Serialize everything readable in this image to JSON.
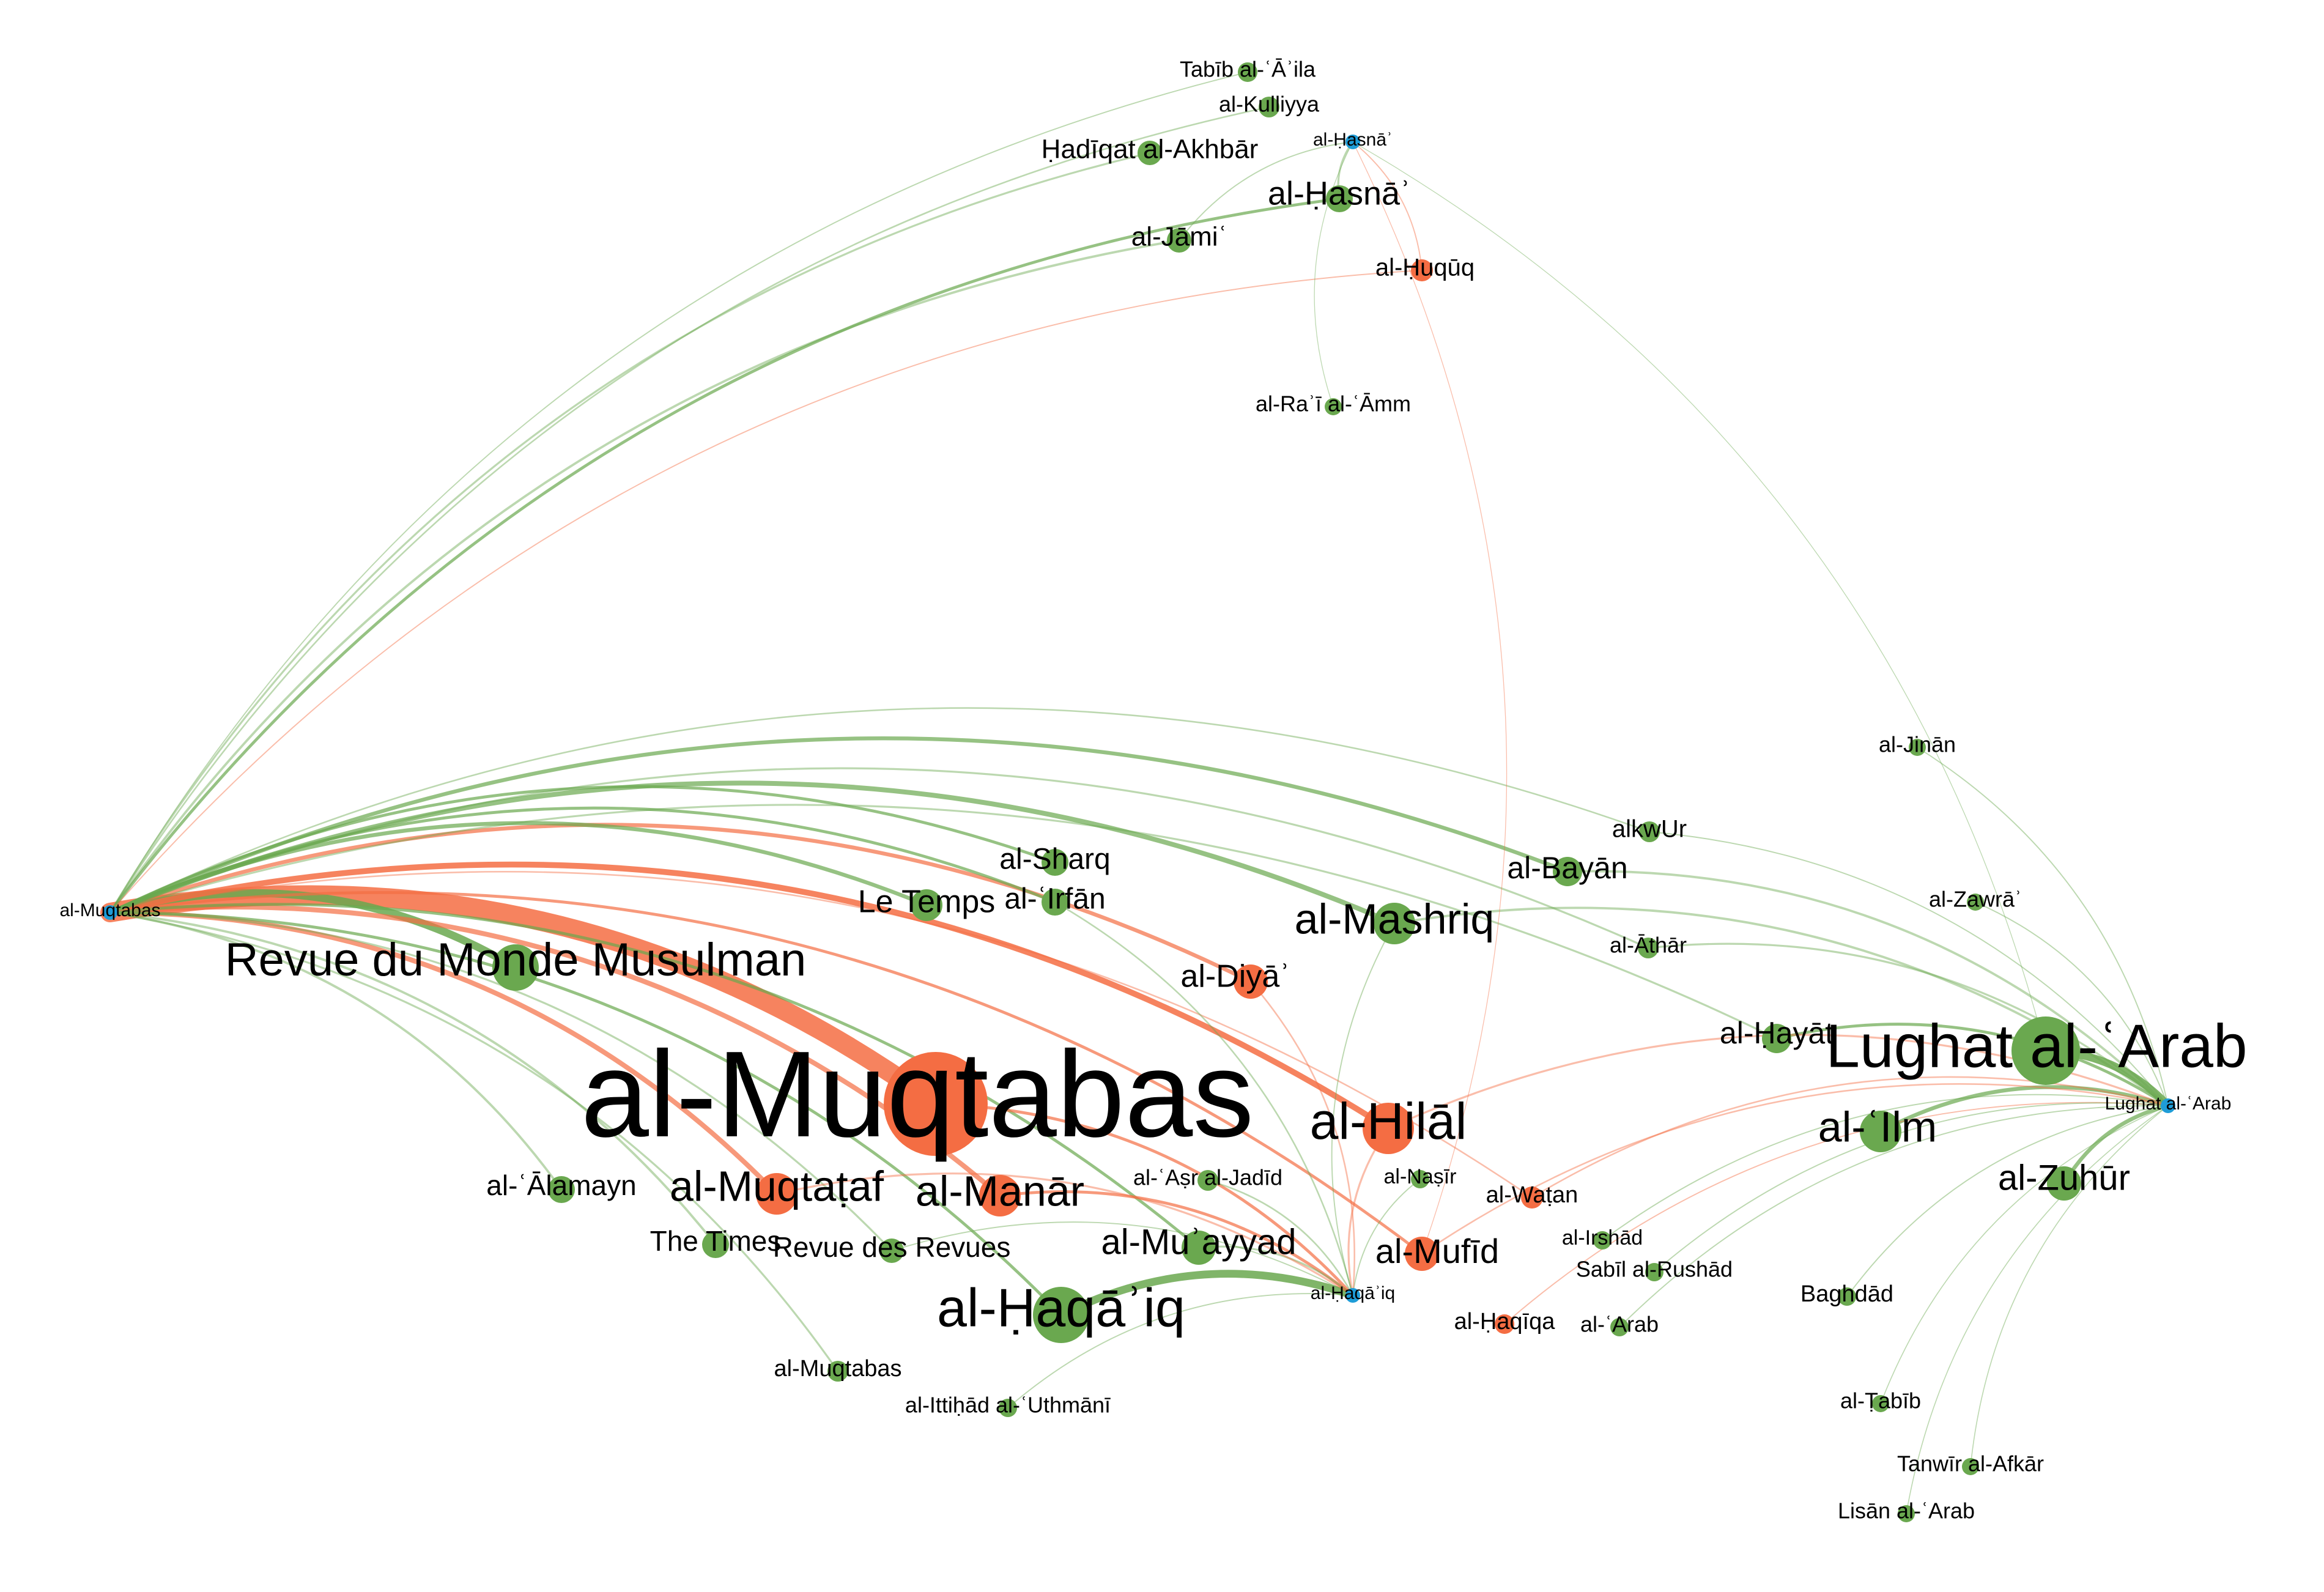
{
  "colors": {
    "green": "#6aa84f",
    "orange": "#f46d43",
    "blue": "#1e9cd7",
    "edge_green": "#6aa84f",
    "edge_orange": "#f46d43",
    "background": "#ffffff"
  },
  "nodes": [
    {
      "id": "muqtabas_big",
      "label": "al-Muqtabas",
      "group": "orange",
      "weight": 10
    },
    {
      "id": "hilal",
      "label": "al-Hilāl",
      "group": "orange",
      "weight": 4.2
    },
    {
      "id": "manar",
      "label": "al-Manār",
      "group": "orange",
      "weight": 3.2
    },
    {
      "id": "muqtataf",
      "label": "al-Muqtaṭaf",
      "group": "orange",
      "weight": 3.2
    },
    {
      "id": "diya",
      "label": "al-Diyāʾ",
      "group": "orange",
      "weight": 2.8
    },
    {
      "id": "mufid",
      "label": "al-Mufīd",
      "group": "orange",
      "weight": 2.8
    },
    {
      "id": "watan",
      "label": "al-Waṭan",
      "group": "orange",
      "weight": 2
    },
    {
      "id": "haqiqa",
      "label": "al-Ḥaqīqa",
      "group": "orange",
      "weight": 2
    },
    {
      "id": "huquq",
      "label": "al-Ḥuqūq",
      "group": "orange",
      "weight": 2
    },
    {
      "id": "lughat_big",
      "label": "Lughat al-ʿArab",
      "group": "green",
      "weight": 4.8
    },
    {
      "id": "haqaiq",
      "label": "al-Ḥaqāʾiq",
      "group": "green",
      "weight": 4
    },
    {
      "id": "rmm",
      "label": "Revue du Monde Musulman",
      "group": "green",
      "weight": 3.4
    },
    {
      "id": "mashriq",
      "label": "al-Mashriq",
      "group": "green",
      "weight": 3
    },
    {
      "id": "ilm",
      "label": "al-ʿIlm",
      "group": "green",
      "weight": 3
    },
    {
      "id": "muayyad",
      "label": "al-Muʾayyad",
      "group": "green",
      "weight": 2.8
    },
    {
      "id": "zuhur",
      "label": "al-Zuhūr",
      "group": "green",
      "weight": 2.8
    },
    {
      "id": "letemps",
      "label": "Le Temps",
      "group": "green",
      "weight": 2.4
    },
    {
      "id": "hayat",
      "label": "al-Ḥayāt",
      "group": "green",
      "weight": 2.4
    },
    {
      "id": "bayan",
      "label": "al-Bayān",
      "group": "green",
      "weight": 2.4
    },
    {
      "id": "sharq",
      "label": "al-Sharq",
      "group": "green",
      "weight": 2.2
    },
    {
      "id": "irfan",
      "label": "al-ʿIrfān",
      "group": "green",
      "weight": 2.2
    },
    {
      "id": "hasna_g",
      "label": "al-Ḥasnāʾ",
      "group": "green",
      "weight": 2.4
    },
    {
      "id": "alamayn",
      "label": "al-ʿĀlamayn",
      "group": "green",
      "weight": 2.2
    },
    {
      "id": "times",
      "label": "The Times",
      "group": "green",
      "weight": 2.2
    },
    {
      "id": "rdr",
      "label": "Revue des Revues",
      "group": "green",
      "weight": 2
    },
    {
      "id": "jami",
      "label": "al-Jāmiʿ",
      "group": "green",
      "weight": 2
    },
    {
      "id": "hadiqat",
      "label": "Ḥadīqat al-Akhbār",
      "group": "green",
      "weight": 2
    },
    {
      "id": "kulliyya",
      "label": "al-Kulliyya",
      "group": "green",
      "weight": 1.8
    },
    {
      "id": "tabib_aila",
      "label": "Tabīb al-ʿĀʾila",
      "group": "green",
      "weight": 1.6
    },
    {
      "id": "rai",
      "label": "al-Raʾī al-ʿĀmm",
      "group": "green",
      "weight": 1.5
    },
    {
      "id": "asr",
      "label": "al-ʿAṣr al-Jadīd",
      "group": "green",
      "weight": 1.8
    },
    {
      "id": "nasir",
      "label": "al-Naṣīr",
      "group": "green",
      "weight": 1.6
    },
    {
      "id": "irshad",
      "label": "al-Irshād",
      "group": "green",
      "weight": 1.6
    },
    {
      "id": "sabil",
      "label": "Sabīl al-Rushād",
      "group": "green",
      "weight": 1.6
    },
    {
      "id": "arab",
      "label": "al-ʿArab",
      "group": "green",
      "weight": 1.6
    },
    {
      "id": "athar",
      "label": "al-Āthār",
      "group": "green",
      "weight": 1.8
    },
    {
      "id": "alkwur",
      "label": "alkwUr",
      "group": "green",
      "weight": 1.8
    },
    {
      "id": "jinan",
      "label": "al-Jinān",
      "group": "green",
      "weight": 1.5
    },
    {
      "id": "zawra",
      "label": "al-Zawrāʾ",
      "group": "green",
      "weight": 1.5
    },
    {
      "id": "baghdad",
      "label": "Baghdād",
      "group": "green",
      "weight": 1.6
    },
    {
      "id": "tabib",
      "label": "al-Ṭabīb",
      "group": "green",
      "weight": 1.5
    },
    {
      "id": "tanwir",
      "label": "Tanwīr al-Afkār",
      "group": "green",
      "weight": 1.5
    },
    {
      "id": "lisan",
      "label": "Lisān al-ʿArab",
      "group": "green",
      "weight": 1.5
    },
    {
      "id": "muqtabas_small",
      "label": "al-Muqtabas",
      "group": "green",
      "weight": 1.8
    },
    {
      "id": "ittihad",
      "label": "al-Ittiḥād al-ʿUthmānī",
      "group": "green",
      "weight": 1.6
    },
    {
      "id": "src_muqtabas",
      "label": "al-Muqtabas",
      "group": "blue",
      "weight": 1
    },
    {
      "id": "src_lughat",
      "label": "Lughat al-ʿArab",
      "group": "blue",
      "weight": 1
    },
    {
      "id": "src_haqaiq",
      "label": "al-Ḥaqāʾiq",
      "group": "blue",
      "weight": 1
    },
    {
      "id": "src_hasna",
      "label": "al-Ḥasnāʾ",
      "group": "blue",
      "weight": 1
    }
  ],
  "edges": [
    {
      "source": "src_muqtabas",
      "target": "muqtabas_big",
      "weight": 10,
      "color": "orange"
    },
    {
      "source": "src_muqtabas",
      "target": "rmm",
      "weight": 4,
      "color": "green"
    },
    {
      "source": "src_muqtabas",
      "target": "hilal",
      "weight": 3,
      "color": "orange"
    },
    {
      "source": "src_muqtabas",
      "target": "manar",
      "weight": 2.5,
      "color": "orange"
    },
    {
      "source": "src_muqtabas",
      "target": "muqtataf",
      "weight": 2.5,
      "color": "orange"
    },
    {
      "source": "src_muqtabas",
      "target": "diya",
      "weight": 2,
      "color": "orange"
    },
    {
      "source": "src_muqtabas",
      "target": "mufid",
      "weight": 1.5,
      "color": "orange"
    },
    {
      "source": "src_muqtabas",
      "target": "mashriq",
      "weight": 2.5,
      "color": "green"
    },
    {
      "source": "src_muqtabas",
      "target": "bayan",
      "weight": 2,
      "color": "green"
    },
    {
      "source": "src_muqtabas",
      "target": "letemps",
      "weight": 2,
      "color": "green"
    },
    {
      "source": "src_muqtabas",
      "target": "sharq",
      "weight": 1.5,
      "color": "green"
    },
    {
      "source": "src_muqtabas",
      "target": "irfan",
      "weight": 1.5,
      "color": "green"
    },
    {
      "source": "src_muqtabas",
      "target": "muayyad",
      "weight": 1.5,
      "color": "green"
    },
    {
      "source": "src_muqtabas",
      "target": "alamayn",
      "weight": 1.2,
      "color": "green"
    },
    {
      "source": "src_muqtabas",
      "target": "times",
      "weight": 1.2,
      "color": "green"
    },
    {
      "source": "src_muqtabas",
      "target": "rdr",
      "weight": 1,
      "color": "green"
    },
    {
      "source": "src_muqtabas",
      "target": "hasna_g",
      "weight": 1.5,
      "color": "green"
    },
    {
      "source": "src_muqtabas",
      "target": "jami",
      "weight": 1.2,
      "color": "green"
    },
    {
      "source": "src_muqtabas",
      "target": "hadiqat",
      "weight": 1,
      "color": "green"
    },
    {
      "source": "src_muqtabas",
      "target": "kulliyya",
      "weight": 0.8,
      "color": "green"
    },
    {
      "source": "src_muqtabas",
      "target": "tabib_aila",
      "weight": 0.6,
      "color": "green"
    },
    {
      "source": "src_muqtabas",
      "target": "huquq",
      "weight": 0.6,
      "color": "orange"
    },
    {
      "source": "src_muqtabas",
      "target": "haqaiq",
      "weight": 1.5,
      "color": "green"
    },
    {
      "source": "src_muqtabas",
      "target": "muqtabas_small",
      "weight": 1,
      "color": "green"
    },
    {
      "source": "src_muqtabas",
      "target": "hayat",
      "weight": 1,
      "color": "green"
    },
    {
      "source": "src_muqtabas",
      "target": "athar",
      "weight": 1,
      "color": "green"
    },
    {
      "source": "src_muqtabas",
      "target": "alkwur",
      "weight": 0.8,
      "color": "green"
    },
    {
      "source": "src_muqtabas",
      "target": "watan",
      "weight": 0.8,
      "color": "orange"
    },
    {
      "source": "src_lughat",
      "target": "lughat_big",
      "weight": 4,
      "color": "green"
    },
    {
      "source": "src_lughat",
      "target": "ilm",
      "weight": 2,
      "color": "green"
    },
    {
      "source": "src_lughat",
      "target": "zuhur",
      "weight": 2,
      "color": "green"
    },
    {
      "source": "src_lughat",
      "target": "hayat",
      "weight": 1.5,
      "color": "green"
    },
    {
      "source": "src_lughat",
      "target": "mashriq",
      "weight": 1.2,
      "color": "green"
    },
    {
      "source": "src_lughat",
      "target": "bayan",
      "weight": 1.2,
      "color": "green"
    },
    {
      "source": "src_lughat",
      "target": "athar",
      "weight": 1,
      "color": "green"
    },
    {
      "source": "src_lughat",
      "target": "hilal",
      "weight": 1,
      "color": "orange"
    },
    {
      "source": "src_lughat",
      "target": "mufid",
      "weight": 0.8,
      "color": "orange"
    },
    {
      "source": "src_lughat",
      "target": "watan",
      "weight": 0.8,
      "color": "orange"
    },
    {
      "source": "src_lughat",
      "target": "haqiqa",
      "weight": 0.6,
      "color": "orange"
    },
    {
      "source": "src_lughat",
      "target": "jinan",
      "weight": 0.6,
      "color": "green"
    },
    {
      "source": "src_lughat",
      "target": "zawra",
      "weight": 0.6,
      "color": "green"
    },
    {
      "source": "src_lughat",
      "target": "baghdad",
      "weight": 0.6,
      "color": "green"
    },
    {
      "source": "src_lughat",
      "target": "tabib",
      "weight": 0.5,
      "color": "green"
    },
    {
      "source": "src_lughat",
      "target": "tanwir",
      "weight": 0.5,
      "color": "green"
    },
    {
      "source": "src_lughat",
      "target": "lisan",
      "weight": 0.5,
      "color": "green"
    },
    {
      "source": "src_lughat",
      "target": "sabil",
      "weight": 0.6,
      "color": "green"
    },
    {
      "source": "src_lughat",
      "target": "arab",
      "weight": 0.6,
      "color": "green"
    },
    {
      "source": "src_lughat",
      "target": "irshad",
      "weight": 0.6,
      "color": "green"
    },
    {
      "source": "src_lughat",
      "target": "alkwur",
      "weight": 0.6,
      "color": "green"
    },
    {
      "source": "src_haqaiq",
      "target": "haqaiq",
      "weight": 4,
      "color": "green"
    },
    {
      "source": "src_haqaiq",
      "target": "manar",
      "weight": 1.5,
      "color": "orange"
    },
    {
      "source": "src_haqaiq",
      "target": "muqtabas_big",
      "weight": 1.5,
      "color": "orange"
    },
    {
      "source": "src_haqaiq",
      "target": "muayyad",
      "weight": 1,
      "color": "green"
    },
    {
      "source": "src_haqaiq",
      "target": "asr",
      "weight": 0.8,
      "color": "green"
    },
    {
      "source": "src_haqaiq",
      "target": "nasir",
      "weight": 0.6,
      "color": "green"
    },
    {
      "source": "src_haqaiq",
      "target": "hilal",
      "weight": 1,
      "color": "orange"
    },
    {
      "source": "src_haqaiq",
      "target": "muqtataf",
      "weight": 1,
      "color": "orange"
    },
    {
      "source": "src_haqaiq",
      "target": "diya",
      "weight": 0.8,
      "color": "orange"
    },
    {
      "source": "src_haqaiq",
      "target": "irfan",
      "weight": 0.8,
      "color": "green"
    },
    {
      "source": "src_haqaiq",
      "target": "ittihad",
      "weight": 0.6,
      "color": "green"
    },
    {
      "source": "src_haqaiq",
      "target": "mashriq",
      "weight": 0.6,
      "color": "green"
    },
    {
      "source": "src_haqaiq",
      "target": "rdr",
      "weight": 0.6,
      "color": "green"
    },
    {
      "source": "src_hasna",
      "target": "hasna_g",
      "weight": 1,
      "color": "green"
    },
    {
      "source": "src_hasna",
      "target": "huquq",
      "weight": 0.6,
      "color": "orange"
    },
    {
      "source": "src_hasna",
      "target": "jami",
      "weight": 0.6,
      "color": "green"
    },
    {
      "source": "src_hasna",
      "target": "rai",
      "weight": 0.4,
      "color": "green"
    },
    {
      "source": "src_hasna",
      "target": "mufid",
      "weight": 0.4,
      "color": "orange"
    },
    {
      "source": "src_hasna",
      "target": "lughat_big",
      "weight": 0.4,
      "color": "green"
    }
  ]
}
